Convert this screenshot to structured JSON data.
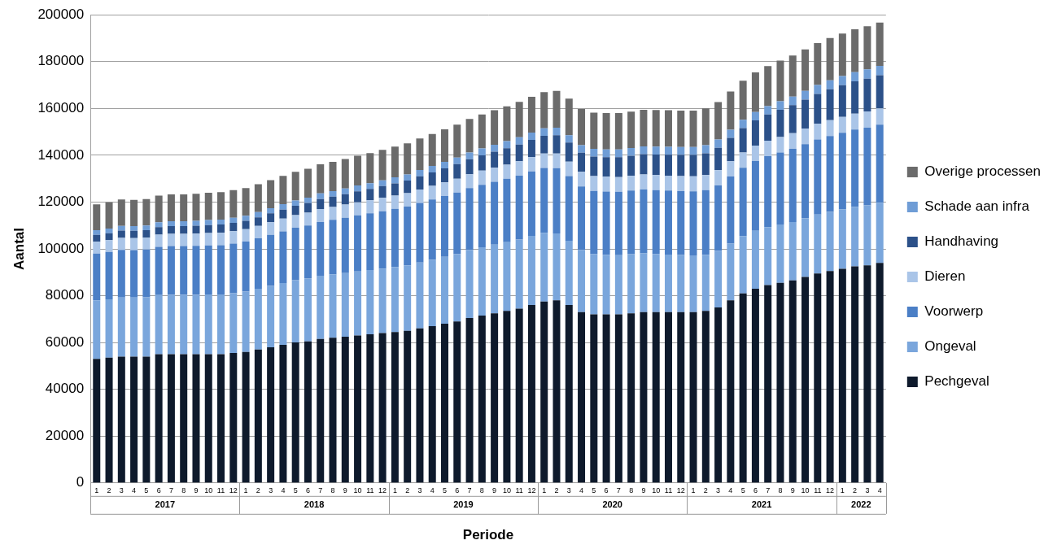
{
  "chart_data": {
    "type": "bar",
    "stacked": true,
    "grid": true,
    "legend": "right",
    "x_label": "Periode",
    "y_label": "Aantal",
    "categories": [
      "1",
      "2",
      "3",
      "4",
      "5",
      "6",
      "7",
      "8",
      "9",
      "10",
      "11",
      "12",
      "1",
      "2",
      "3",
      "4",
      "5",
      "6",
      "7",
      "8",
      "9",
      "10",
      "11",
      "12",
      "1",
      "2",
      "3",
      "4",
      "5",
      "6",
      "7",
      "8",
      "9",
      "10",
      "11",
      "12",
      "1",
      "2",
      "3",
      "4",
      "5",
      "6",
      "7",
      "8",
      "9",
      "10",
      "11",
      "12",
      "1",
      "2",
      "3",
      "4",
      "5",
      "6",
      "7",
      "8",
      "9",
      "10",
      "11",
      "12",
      "1",
      "2",
      "3",
      "4"
    ],
    "category_groups": [
      {
        "label": "2017",
        "size": 12
      },
      {
        "label": "2018",
        "size": 12
      },
      {
        "label": "2019",
        "size": 12
      },
      {
        "label": "2020",
        "size": 12
      },
      {
        "label": "2021",
        "size": 12
      },
      {
        "label": "2022",
        "size": 4
      }
    ],
    "ylim": [
      0,
      200000
    ],
    "yticks": [
      0,
      20000,
      40000,
      60000,
      80000,
      100000,
      120000,
      140000,
      160000,
      180000,
      200000
    ],
    "series": [
      {
        "name": "Pechgeval",
        "color": "#0e1a2c",
        "values": [
          53000,
          53500,
          54000,
          54000,
          54000,
          55000,
          55000,
          55000,
          55000,
          55000,
          55000,
          55500,
          56000,
          57000,
          58000,
          59000,
          60000,
          60500,
          61500,
          62000,
          62500,
          63000,
          63500,
          64000,
          64500,
          65000,
          66000,
          67000,
          68000,
          69000,
          70500,
          71500,
          72500,
          73500,
          74500,
          76000,
          77500,
          78000,
          76000,
          73000,
          72000,
          72000,
          72000,
          72500,
          73000,
          73000,
          73000,
          73000,
          73000,
          73500,
          75000,
          78000,
          81000,
          83000,
          84500,
          85500,
          86500,
          88000,
          89500,
          90500,
          91500,
          92500,
          93000,
          94000
        ]
      },
      {
        "name": "Ongeval",
        "color": "#7aa6dc",
        "values": [
          25000,
          25000,
          25200,
          25200,
          25300,
          25300,
          25400,
          25400,
          25400,
          25500,
          25500,
          25600,
          25800,
          26000,
          26200,
          26400,
          26600,
          26800,
          27000,
          27100,
          27200,
          27400,
          27500,
          27600,
          27800,
          28000,
          28200,
          28400,
          28600,
          28800,
          29000,
          29200,
          29300,
          29400,
          29500,
          29600,
          29400,
          28600,
          27500,
          26500,
          25800,
          25500,
          25300,
          25200,
          25100,
          24800,
          24600,
          24400,
          24200,
          24000,
          24100,
          24300,
          24500,
          24700,
          24800,
          24900,
          25000,
          25100,
          25200,
          25300,
          25400,
          25500,
          25600,
          25700
        ]
      },
      {
        "name": "Voorwerp",
        "color": "#4b7fc6",
        "values": [
          20000,
          20200,
          20400,
          20300,
          20400,
          20600,
          20800,
          20800,
          20900,
          21000,
          21100,
          21200,
          21300,
          21500,
          21800,
          22100,
          22400,
          22700,
          23000,
          23300,
          23600,
          23900,
          24200,
          24500,
          24800,
          25100,
          25400,
          25700,
          26000,
          26300,
          26500,
          26700,
          26900,
          27100,
          27300,
          27500,
          27700,
          27900,
          27600,
          27200,
          27000,
          27000,
          27100,
          27200,
          27300,
          27300,
          27300,
          27300,
          27400,
          27600,
          28000,
          28600,
          29200,
          29800,
          30300,
          30800,
          31200,
          31600,
          32000,
          32400,
          32700,
          33000,
          33200,
          33400
        ]
      },
      {
        "name": "Dieren",
        "color": "#aac5e8",
        "values": [
          5000,
          5000,
          5100,
          5100,
          5100,
          5200,
          5200,
          5200,
          5200,
          5300,
          5300,
          5300,
          5300,
          5300,
          5400,
          5400,
          5400,
          5500,
          5500,
          5500,
          5600,
          5600,
          5600,
          5700,
          5700,
          5700,
          5800,
          5800,
          5800,
          5900,
          5900,
          6000,
          6000,
          6000,
          6100,
          6100,
          6100,
          6200,
          6200,
          6200,
          6300,
          6300,
          6300,
          6300,
          6400,
          6400,
          6400,
          6400,
          6400,
          6400,
          6500,
          6500,
          6500,
          6600,
          6600,
          6600,
          6700,
          6700,
          6700,
          6800,
          6800,
          6800,
          6900,
          6900
        ]
      },
      {
        "name": "Handhaving",
        "color": "#2c5189",
        "values": [
          3000,
          3000,
          3100,
          3100,
          3200,
          3200,
          3300,
          3300,
          3400,
          3400,
          3500,
          3500,
          3600,
          3700,
          3800,
          3900,
          4000,
          4100,
          4300,
          4400,
          4500,
          4700,
          4800,
          5000,
          5200,
          5400,
          5600,
          5800,
          6000,
          6200,
          6400,
          6600,
          6800,
          7000,
          7200,
          7400,
          7600,
          7900,
          8100,
          8200,
          8300,
          8400,
          8500,
          8600,
          8700,
          8800,
          8900,
          9000,
          9100,
          9300,
          9600,
          10000,
          10400,
          10800,
          11200,
          11600,
          12000,
          12400,
          12800,
          13200,
          13500,
          13800,
          14000,
          14200
        ]
      },
      {
        "name": "Schade aan infra",
        "color": "#6f9dd6",
        "values": [
          2000,
          2000,
          2000,
          2000,
          2000,
          2100,
          2100,
          2100,
          2100,
          2100,
          2100,
          2200,
          2200,
          2200,
          2200,
          2300,
          2300,
          2300,
          2400,
          2400,
          2400,
          2500,
          2500,
          2500,
          2600,
          2600,
          2700,
          2700,
          2800,
          2800,
          2900,
          2900,
          3000,
          3000,
          3100,
          3100,
          3200,
          3200,
          3200,
          3200,
          3300,
          3300,
          3300,
          3300,
          3300,
          3400,
          3400,
          3400,
          3400,
          3500,
          3500,
          3500,
          3600,
          3600,
          3600,
          3700,
          3700,
          3700,
          3800,
          3800,
          3900,
          3900,
          4000,
          4000
        ]
      },
      {
        "name": "Overige processen",
        "color": "#6b6b6b",
        "values": [
          11000,
          11200,
          11300,
          11200,
          11300,
          11400,
          11500,
          11500,
          11500,
          11700,
          11700,
          11800,
          11800,
          11900,
          12000,
          12100,
          12200,
          12300,
          12400,
          12500,
          12600,
          12700,
          12800,
          13000,
          13100,
          13300,
          13500,
          13700,
          13900,
          14100,
          14300,
          14500,
          14700,
          14900,
          15100,
          15300,
          15500,
          15700,
          15600,
          15500,
          15500,
          15500,
          15500,
          15500,
          15600,
          15600,
          15600,
          15600,
          15600,
          15700,
          16000,
          16300,
          16600,
          16900,
          17100,
          17300,
          17500,
          17700,
          17900,
          18100,
          18200,
          18300,
          18400,
          18500
        ]
      }
    ]
  }
}
